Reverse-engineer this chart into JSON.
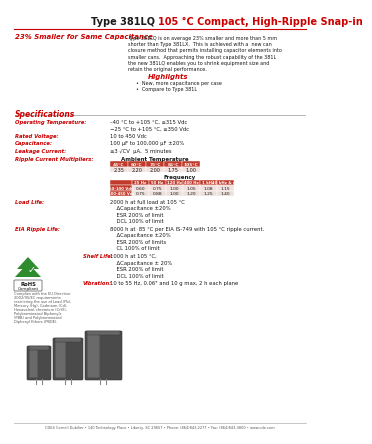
{
  "title_black": "Type 381LQ ",
  "title_red": "105 °C Compact, High-Ripple Snap-in",
  "subtitle": "23% Smaller for Same Capacitance",
  "bg_color": "#ffffff",
  "red_color": "#cc0000",
  "black_color": "#1a1a1a",
  "gray_color": "#555555",
  "lgray_color": "#999999",
  "body_text": "Type 381LQ is on average 23% smaller and more than 5 mm\nshorter than Type 381LX.  This is achieved with a  new can\nclosure method that permits installing capacitor elements into\nsmaller cans.  Approaching the robust capability of the 381L\nthe new 381LQ enables you to shrink equipment size and\nretain the original performance.",
  "highlights_title": "Highlights",
  "highlight_bullets": [
    "New, more capacitance per case",
    "Compare to Type 381L"
  ],
  "specs_title": "Specifications",
  "spec_items": [
    [
      "Operating Temperature:",
      "–40 °C to +105 °C, ≤315 Vdc\n−25 °C to +105 °C, ≥350 Vdc"
    ],
    [
      "Rated Voltage:",
      "10 to 450 Vdc"
    ],
    [
      "Capacitance:",
      "100 μF to 100,000 μF ±20%"
    ],
    [
      "Leakage Current:",
      "≤3 √CV  μA,  5 minutes"
    ],
    [
      "Ripple Current Multipliers:",
      ""
    ]
  ],
  "ambient_header": "Ambient Temperature",
  "ambient_temps": [
    "45°C",
    "60°C",
    "75°C",
    "85°C",
    "105°C"
  ],
  "ambient_vals": [
    "2.35",
    "2.20",
    "2.00",
    "1.75",
    "1.00"
  ],
  "freq_header": "Frequency",
  "freq_cols": [
    "25 Hz",
    "50 Hz",
    "120 Hz",
    "400 Hz",
    "1 kHz",
    "10 kHz & up"
  ],
  "freq_rows": [
    "50-100 Vdc",
    "100-450 Vdc"
  ],
  "freq_vals": [
    [
      "0.60",
      "0.75",
      "1.00",
      "1.05",
      "1.08",
      "1.15"
    ],
    [
      "0.75",
      "0.88",
      "1.00",
      "1.20",
      "1.25",
      "1.40"
    ]
  ],
  "load_life_label": "Load Life:",
  "load_life_lines": [
    "2000 h at full load at 105 °C",
    "    ΔCapacitance ±20%",
    "    ESR 200% of limit",
    "    DCL 100% of limit"
  ],
  "eia_label": "EIA Ripple Life:",
  "eia_lines": [
    "8000 h at  85 °C per EIA IS-749 with 105 °C ripple current.",
    "    ΔCapacitance ±20%",
    "    ESR 200% of limits",
    "    CL 100% of limit"
  ],
  "shelf_label": "Shelf Life:",
  "shelf_lines": [
    "1000 h at 105 °C,",
    "    ΔCapacitance ± 20%",
    "    ESR 200% of limit",
    "    DCL 100% of limit"
  ],
  "vib_label": "Vibration:",
  "vib_text": "10 to 55 Hz, 0.06\" and 10 g max, 2 h each plane",
  "footer": "CDE4 Cornell Dubilier • 140 Technology Place • Liberty, SC 29657 • Phone: (864)843-2277 • Fax: (864)843-3800 • www.cde.com",
  "rohs_text_lines": [
    "Complies with the EU Directive",
    "2002/95/EC requirements",
    "restricting the use of Lead (Pb),",
    "Mercury (Hg), Cadmium (Cd),",
    "Hexavalent chromium (CrVI),",
    "Polybrominated Biphenyls",
    "(PBB) and Polybrominated",
    "Diphenyl Ethers (PBDE)."
  ],
  "table_hdr_color": "#c0392b",
  "table_row0_color": "#f2e0dd",
  "table_row1_color": "#ede0db"
}
